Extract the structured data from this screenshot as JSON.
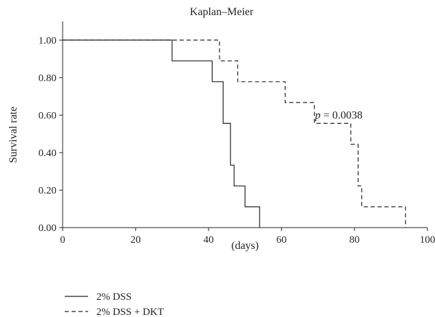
{
  "chart_data": {
    "type": "line",
    "title": "Kaplan–Meier",
    "xlabel": "(days)",
    "ylabel": "Survival rate",
    "xlim": [
      0,
      100
    ],
    "ylim": [
      0,
      1.1
    ],
    "x_ticks": [
      0,
      20,
      40,
      60,
      80,
      100
    ],
    "y_ticks": [
      "0.00",
      "0.20",
      "0.40",
      "0.60",
      "0.80",
      "1.00"
    ],
    "grid": false,
    "legend_position": "bottom-left",
    "annotation": {
      "italic": "p",
      "text": " = 0.0038",
      "x": 79,
      "y": 0.6
    },
    "series": [
      {
        "name": "2% DSS",
        "line_style": "solid",
        "color": "#231f20",
        "x": [
          0,
          30,
          41,
          44,
          46,
          47,
          50,
          54
        ],
        "y": [
          1.0,
          0.889,
          0.778,
          0.556,
          0.333,
          0.222,
          0.111,
          0.0
        ]
      },
      {
        "name": "2% DSS + DKT",
        "line_style": "dashed",
        "color": "#231f20",
        "x": [
          0,
          43,
          48,
          61,
          69,
          79,
          81,
          82,
          94
        ],
        "y": [
          1.0,
          0.889,
          0.778,
          0.667,
          0.556,
          0.444,
          0.222,
          0.111,
          0.0
        ]
      }
    ]
  }
}
